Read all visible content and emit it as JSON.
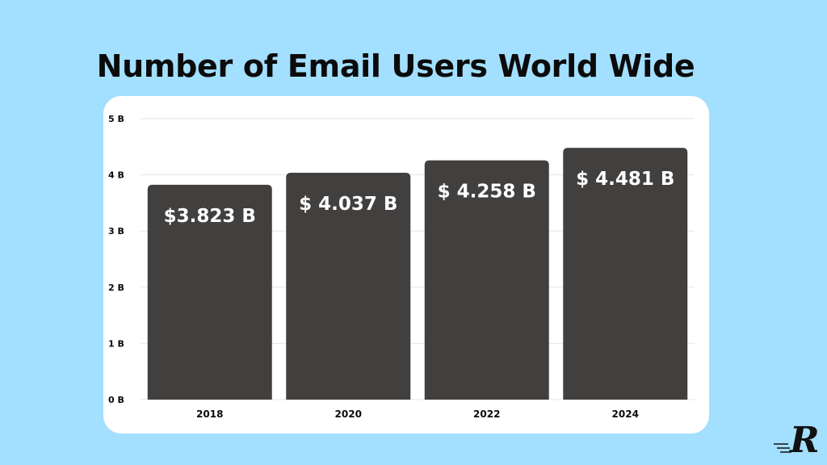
{
  "title": "Number of Email Users World Wide",
  "colors": {
    "background": "#a3dffe",
    "card": "#ffffff",
    "bar": "#42403f",
    "bar_label": "#ffffff",
    "text": "#0b0b0b",
    "grid": "#e6e6e6"
  },
  "chart_data": {
    "type": "bar",
    "categories": [
      "2018",
      "2020",
      "2022",
      "2024"
    ],
    "values": [
      3.823,
      4.037,
      4.258,
      4.481
    ],
    "data_labels": [
      "$3.823 B",
      "$ 4.037 B",
      "$ 4.258 B",
      "$ 4.481 B"
    ],
    "y_ticks": [
      0,
      1,
      2,
      3,
      4,
      5
    ],
    "y_tick_labels": [
      "0 B",
      "1 B",
      "2 B",
      "3 B",
      "4 B",
      "5 B"
    ],
    "ylim": [
      0,
      5
    ],
    "grid": true
  },
  "logo": {
    "letter": "R"
  }
}
